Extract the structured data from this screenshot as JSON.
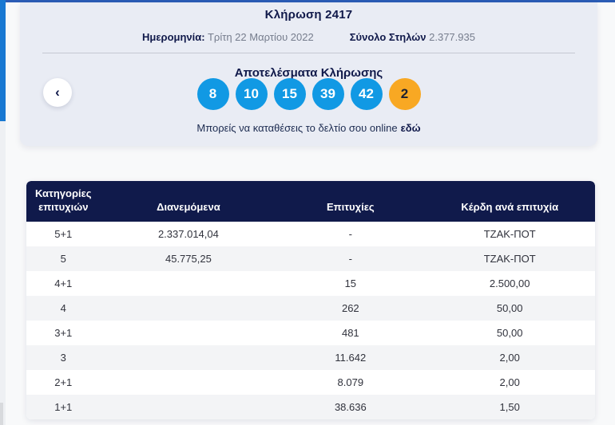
{
  "draw": {
    "title": "Κλήρωση 2417",
    "date_label": "Ημερομηνία:",
    "date_value": "Τρίτη 22 Μαρτίου 2022",
    "columns_label": "Σύνολο Στηλών",
    "columns_value": "2.377.935"
  },
  "results": {
    "title": "Αποτελέσματα Κλήρωσης",
    "numbers": [
      "8",
      "10",
      "15",
      "39",
      "42"
    ],
    "bonus_number": "2",
    "deposit_text": "Μπορείς να καταθέσεις το δελτίο σου online",
    "deposit_link": "εδώ",
    "prev_icon": "‹"
  },
  "colors": {
    "accent_blue": "#1199e4",
    "bonus_yellow": "#f8a823",
    "navy": "#101a4b",
    "card_bg": "#e9ecf4",
    "top_line": "#2b5cb5",
    "left_strip": "#1878d2"
  },
  "table": {
    "headers": [
      "Κατηγορίες επιτυχιών",
      "Διανεμόμενα",
      "Επιτυχίες",
      "Κέρδη ανά επιτυχία"
    ],
    "rows": [
      {
        "category": "5+1",
        "distributed": "2.337.014,04",
        "winners": "-",
        "prize": "ΤΖΑΚ-ΠΟΤ"
      },
      {
        "category": "5",
        "distributed": "45.775,25",
        "winners": "-",
        "prize": "ΤΖΑΚ-ΠΟΤ"
      },
      {
        "category": "4+1",
        "distributed": "",
        "winners": "15",
        "prize": "2.500,00"
      },
      {
        "category": "4",
        "distributed": "",
        "winners": "262",
        "prize": "50,00"
      },
      {
        "category": "3+1",
        "distributed": "",
        "winners": "481",
        "prize": "50,00"
      },
      {
        "category": "3",
        "distributed": "",
        "winners": "11.642",
        "prize": "2,00"
      },
      {
        "category": "2+1",
        "distributed": "",
        "winners": "8.079",
        "prize": "2,00"
      },
      {
        "category": "1+1",
        "distributed": "",
        "winners": "38.636",
        "prize": "1,50"
      }
    ]
  }
}
